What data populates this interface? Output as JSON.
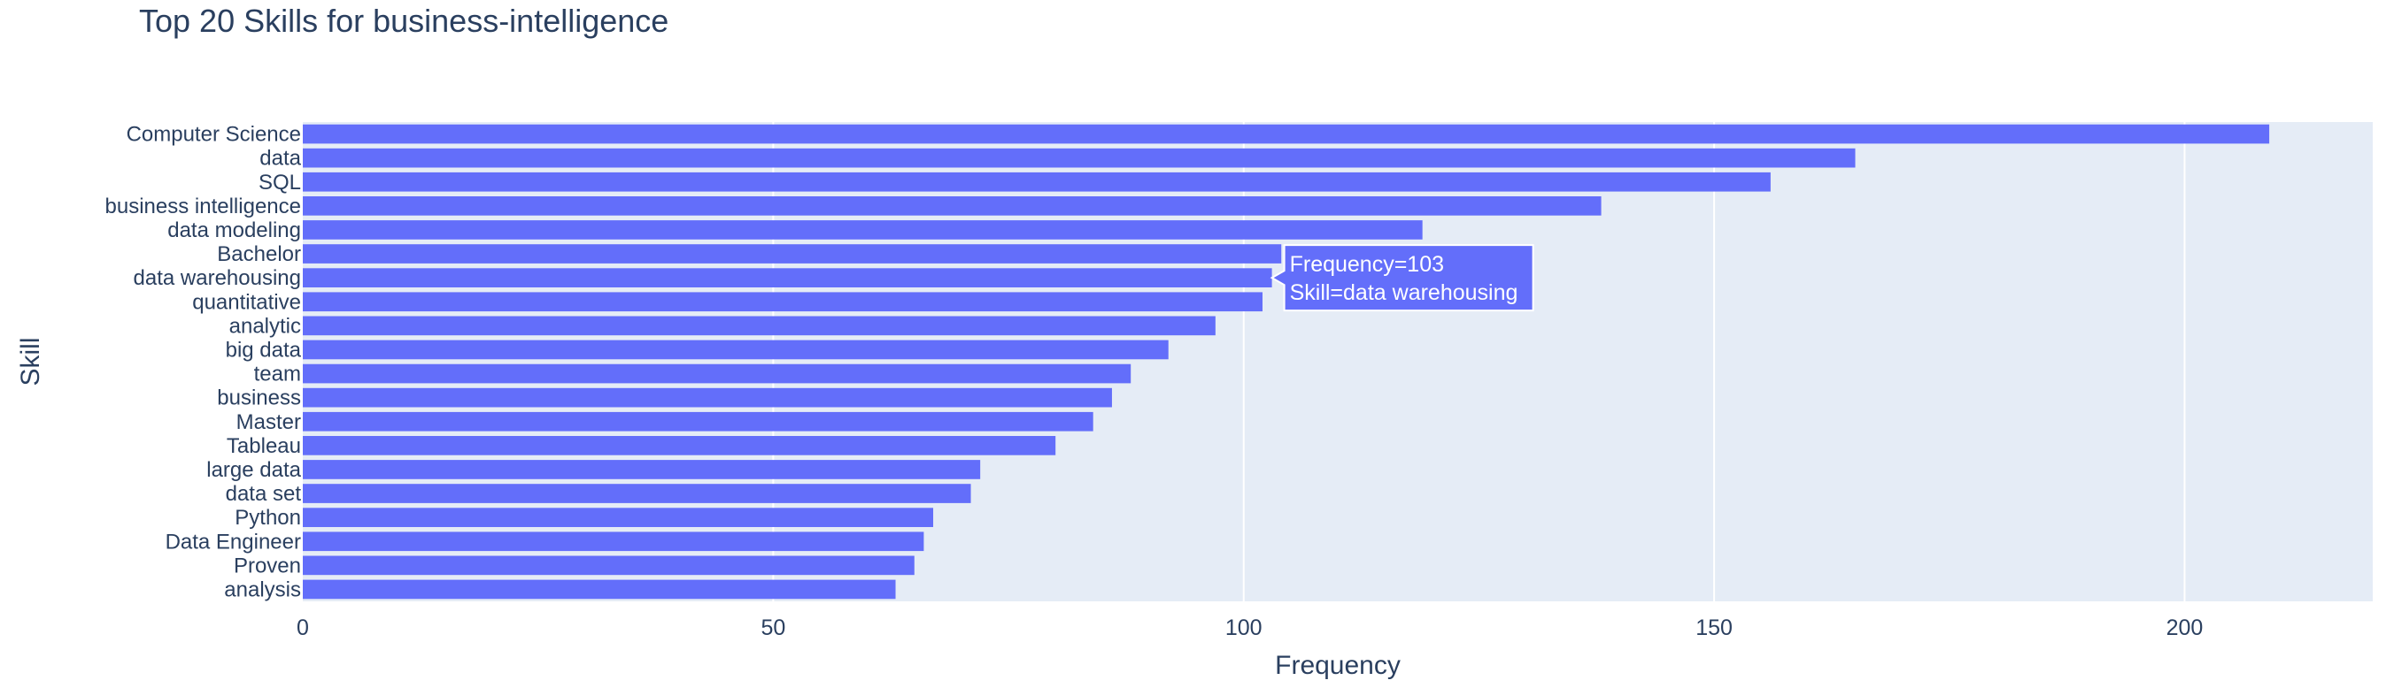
{
  "chart_data": {
    "type": "bar",
    "orientation": "horizontal",
    "title": "Top 20 Skills for business-intelligence",
    "xlabel": "Frequency",
    "ylabel": "Skill",
    "xlim": [
      0,
      220
    ],
    "xticks": [
      0,
      50,
      100,
      150,
      200
    ],
    "grid": true,
    "bar_color": "#636efa",
    "plot_bg": "#e5ecf6",
    "categories": [
      "Computer Science",
      "data",
      "SQL",
      "business intelligence",
      "data modeling",
      "Bachelor",
      "data warehousing",
      "quantitative",
      "analytic",
      "big data",
      "team",
      "business",
      "Master",
      "Tableau",
      "large data",
      "data set",
      "Python",
      "Data Engineer",
      "Proven",
      "analysis"
    ],
    "values": [
      209,
      165,
      156,
      138,
      119,
      104,
      103,
      102,
      97,
      92,
      88,
      86,
      84,
      80,
      72,
      71,
      67,
      66,
      65,
      63
    ],
    "hover": {
      "index": 6,
      "line1": "Frequency=103",
      "line2": "Skill=data warehousing"
    }
  }
}
